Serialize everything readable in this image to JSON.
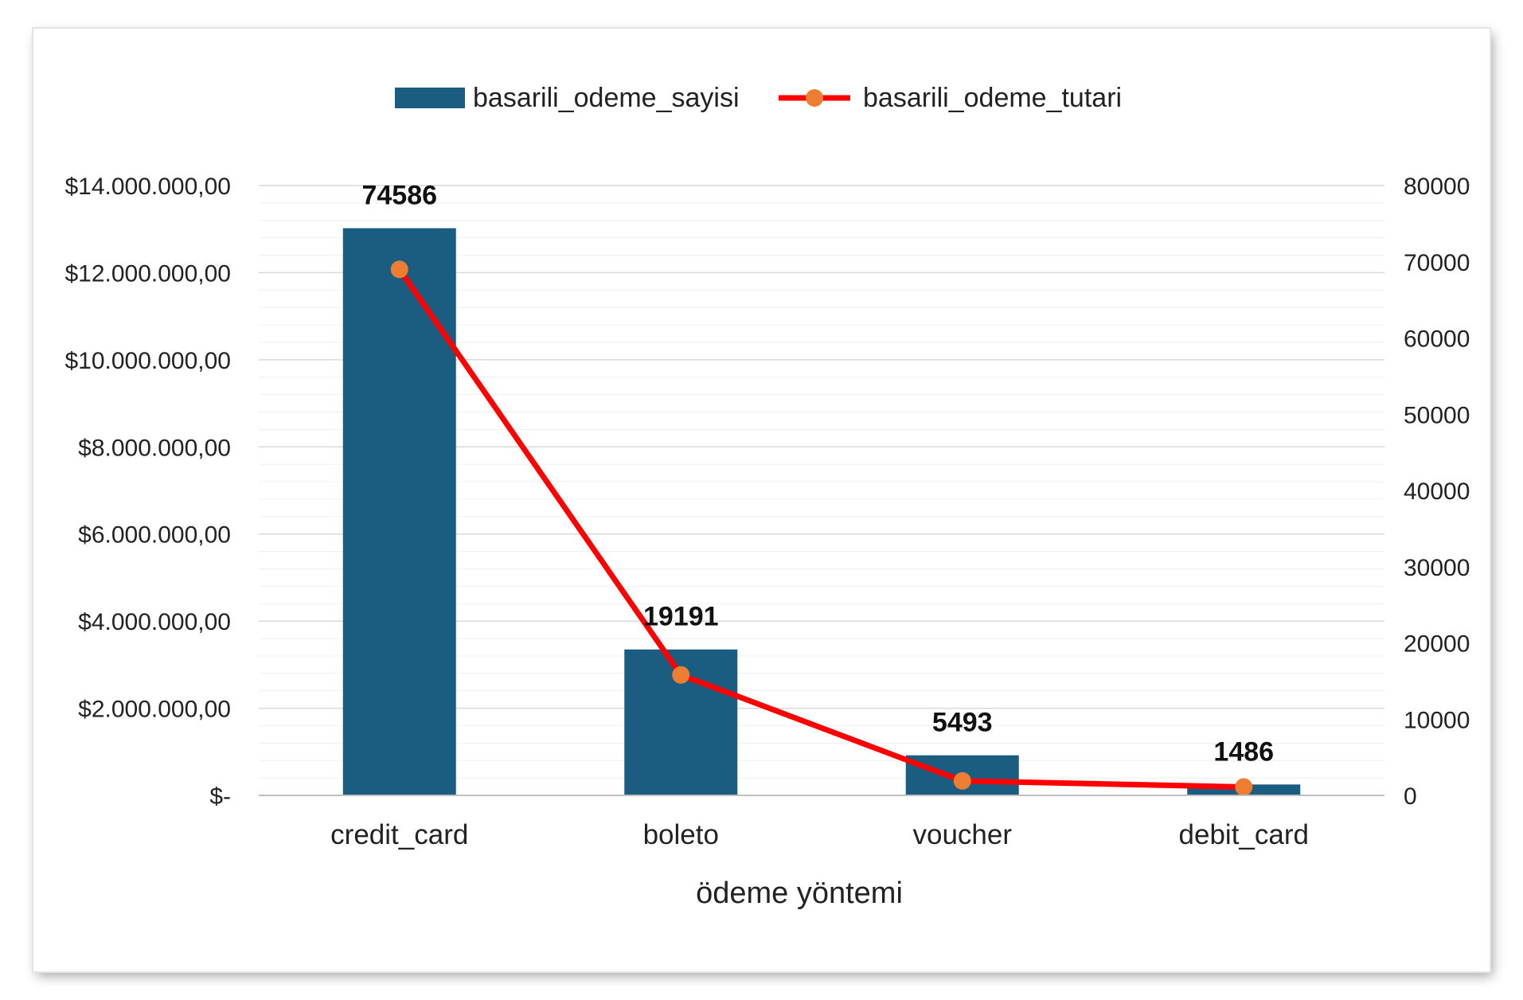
{
  "chart_data": {
    "type": "bar",
    "categories": [
      "credit_card",
      "boleto",
      "voucher",
      "debit_card"
    ],
    "series": [
      {
        "name": "basarili_odeme_sayisi",
        "kind": "bar",
        "axis": "left",
        "values": [
          13020000,
          3350000,
          920000,
          250000
        ],
        "data_labels": [
          "74586",
          "19191",
          "5493",
          "1486"
        ],
        "color": "#1a5d80"
      },
      {
        "name": "basarili_odeme_tutari",
        "kind": "line",
        "axis": "right",
        "values": [
          69000,
          15800,
          1900,
          1100
        ],
        "color": "#ff0000",
        "marker_color": "#ed7d31"
      }
    ],
    "xlabel": "ödeme yöntemi",
    "ylim_left": [
      0,
      14000000
    ],
    "ylim_right": [
      0,
      80000
    ],
    "left_ticks": [
      "$-",
      "$2.000.000,00",
      "$4.000.000,00",
      "$6.000.000,00",
      "$8.000.000,00",
      "$10.000.000,00",
      "$12.000.000,00",
      "$14.000.000,00"
    ],
    "right_ticks": [
      "0",
      "10000",
      "20000",
      "30000",
      "40000",
      "50000",
      "60000",
      "70000",
      "80000"
    ],
    "grid": true,
    "legend_position": "top-center"
  }
}
